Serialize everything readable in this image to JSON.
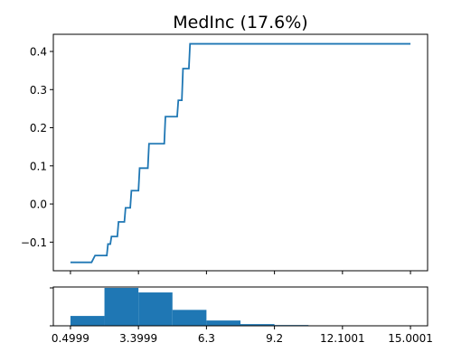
{
  "chart_data": [
    {
      "type": "line",
      "title": "MedInc (17.6%)",
      "xlabel": "",
      "ylabel": "",
      "xlim": [
        -0.23,
        15.73
      ],
      "ylim": [
        -0.175,
        0.445
      ],
      "grid": false,
      "yticks": [
        -0.1,
        0.0,
        0.1,
        0.2,
        0.3,
        0.4
      ],
      "ytick_labels": [
        "−0.1",
        "0.0",
        "0.1",
        "0.2",
        "0.3",
        "0.4"
      ],
      "xticks": [
        0.4999,
        3.3999,
        6.3,
        9.2,
        12.1001,
        15.0001
      ],
      "color": "#1f77b4",
      "series": [
        {
          "x": [
            0.4999,
            1.4,
            1.55,
            2.05,
            2.1,
            2.2,
            2.25,
            2.5,
            2.55,
            2.8,
            2.85,
            3.05,
            3.1,
            3.4,
            3.45,
            3.8,
            3.85,
            4.5,
            4.55,
            5.05,
            5.1,
            5.25,
            5.3,
            5.55,
            5.6,
            6.05,
            6.1,
            6.65,
            6.7,
            7.25,
            7.3,
            8.4,
            8.5,
            15.0001
          ],
          "y": [
            -0.153,
            -0.153,
            -0.135,
            -0.135,
            -0.105,
            -0.105,
            -0.085,
            -0.085,
            -0.047,
            -0.047,
            -0.01,
            -0.01,
            0.035,
            0.035,
            0.094,
            0.094,
            0.158,
            0.158,
            0.229,
            0.229,
            0.272,
            0.272,
            0.355,
            0.355,
            0.42,
            0.42,
            0.42,
            0.42,
            0.42,
            0.42,
            0.42,
            0.42,
            0.42,
            0.42
          ]
        }
      ]
    },
    {
      "type": "bar",
      "title": "",
      "xlabel": "",
      "ylabel": "",
      "xlim": [
        -0.23,
        15.73
      ],
      "ylim": [
        0,
        1.0
      ],
      "grid": false,
      "bin_edges": [
        0.4999,
        1.95,
        3.3999,
        4.85,
        6.3,
        7.75,
        9.2,
        10.65,
        12.1001,
        13.55,
        15.0001
      ],
      "values": [
        0.26,
        1.0,
        0.88,
        0.42,
        0.14,
        0.045,
        0.02,
        0.004,
        0.002,
        0.004
      ],
      "xticks": [
        0.4999,
        3.3999,
        6.3,
        9.2,
        12.1001,
        15.0001
      ],
      "xtick_labels": [
        "0.4999",
        "3.3999",
        "6.3",
        "9.2",
        "12.1001",
        "15.0001"
      ],
      "yticks": [
        0.0,
        1.0
      ],
      "color": "#1f77b4"
    }
  ]
}
